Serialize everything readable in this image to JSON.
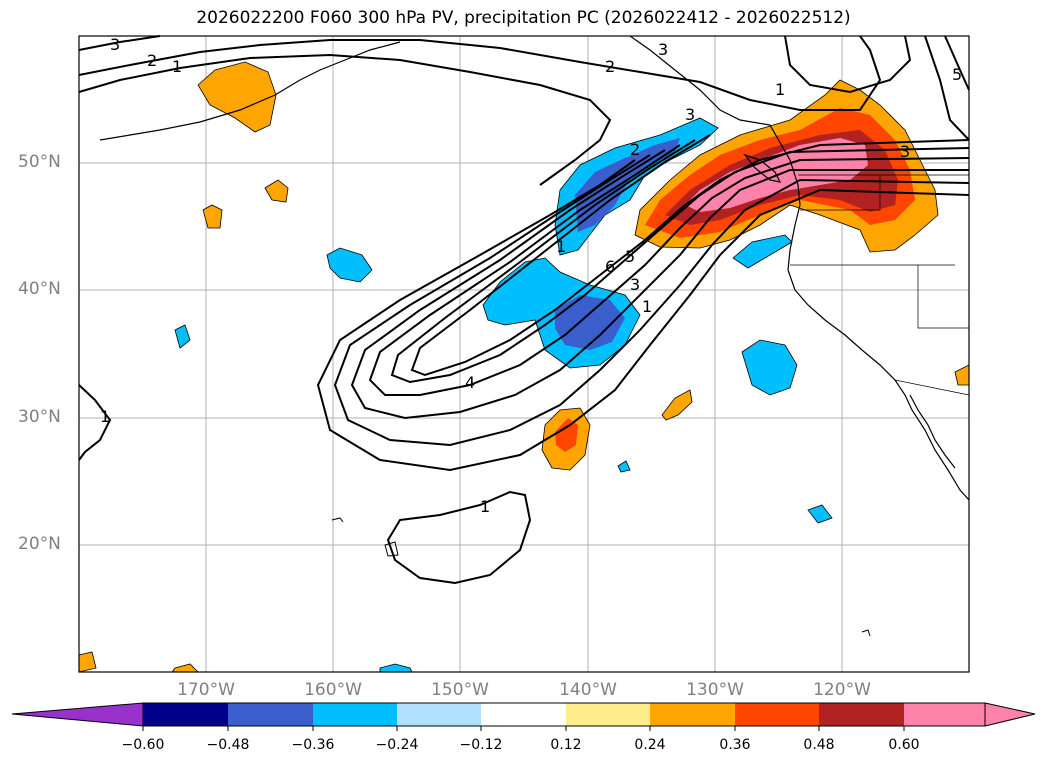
{
  "title": "2026022200 F060 300 hPa PV, precipitation PC (2026022412 - 2026022512)",
  "map": {
    "lat_labels": [
      "50°N",
      "40°N",
      "30°N",
      "20°N"
    ],
    "lon_labels": [
      "170°W",
      "160°W",
      "150°W",
      "140°W",
      "130°W",
      "120°W"
    ],
    "extent": {
      "lon_min": -180,
      "lon_max": -110,
      "lat_min": 10,
      "lat_max": 60
    }
  },
  "contour_labels": [
    "3",
    "2",
    "1",
    "2",
    "3",
    "1",
    "2",
    "1",
    "6",
    "5",
    "3",
    "1",
    "4",
    "1",
    "1",
    "3",
    "3",
    "5"
  ],
  "colorbar": {
    "ticks": [
      "−0.60",
      "−0.48",
      "−0.36",
      "−0.24",
      "−0.12",
      "0.12",
      "0.24",
      "0.36",
      "0.48",
      "0.60"
    ],
    "colors": [
      "#9932cc",
      "#00008b",
      "#3a5fcd",
      "#00bfff",
      "#b0e2ff",
      "#ffffff",
      "#ffec8b",
      "#ffa500",
      "#ff4500",
      "#b22222",
      "#ff82ab"
    ]
  }
}
